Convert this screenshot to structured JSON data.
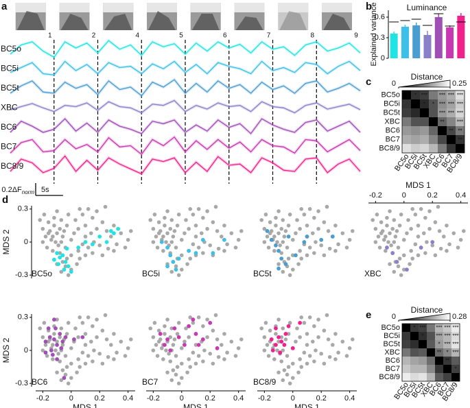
{
  "chart_data": [
    {
      "panel": "a",
      "type": "line",
      "image_labels": [
        "1",
        "2",
        "4",
        "5",
        "6",
        "7",
        "8",
        "9"
      ],
      "x": [
        0,
        2,
        4,
        6,
        8,
        10,
        12,
        14,
        16,
        18,
        20,
        22,
        24,
        26,
        28,
        30,
        32,
        34,
        36,
        38,
        40,
        42,
        44,
        46,
        48,
        50,
        52,
        54,
        56,
        58,
        60,
        62,
        64
      ],
      "events": [
        8,
        16,
        24,
        32,
        40,
        48,
        56
      ],
      "series": [
        {
          "name": "BC5o",
          "color": "#22e3e3",
          "values": [
            0.1,
            0.25,
            0.3,
            0.15,
            0.05,
            0.3,
            0.2,
            0.28,
            0.12,
            0.32,
            0.18,
            0.25,
            0.08,
            0.3,
            0.22,
            0.27,
            0.1,
            0.28,
            0.15,
            0.3,
            0.2,
            0.26,
            0.12,
            0.3,
            0.18,
            0.22,
            0.08,
            0.25,
            0.3,
            0.15,
            0.2,
            0.28,
            0.12
          ]
        },
        {
          "name": "BC5i",
          "color": "#3cbfe8",
          "values": [
            0.12,
            0.2,
            0.28,
            0.1,
            0.08,
            0.3,
            0.15,
            0.25,
            0.1,
            0.28,
            0.2,
            0.22,
            0.1,
            0.26,
            0.18,
            0.3,
            0.12,
            0.25,
            0.1,
            0.28,
            0.22,
            0.18,
            0.1,
            0.3,
            0.15,
            0.2,
            0.12,
            0.28,
            0.25,
            0.1,
            0.22,
            0.3,
            0.15
          ]
        },
        {
          "name": "BC5t",
          "color": "#4a9dd0",
          "values": [
            0.1,
            0.22,
            0.3,
            0.12,
            0.1,
            0.28,
            0.18,
            0.24,
            0.08,
            0.3,
            0.16,
            0.2,
            0.06,
            0.28,
            0.2,
            0.32,
            0.1,
            0.26,
            0.12,
            0.3,
            0.18,
            0.24,
            0.1,
            0.28,
            0.16,
            0.22,
            0.1,
            0.26,
            0.3,
            0.12,
            0.18,
            0.26,
            0.14
          ]
        },
        {
          "name": "XBC",
          "color": "#8a80c9",
          "values": [
            0.15,
            0.2,
            0.25,
            0.18,
            0.12,
            0.22,
            0.2,
            0.26,
            0.14,
            0.28,
            0.2,
            0.18,
            0.1,
            0.24,
            0.22,
            0.3,
            0.12,
            0.22,
            0.16,
            0.26,
            0.2,
            0.22,
            0.12,
            0.28,
            0.2,
            0.18,
            0.1,
            0.22,
            0.26,
            0.16,
            0.2,
            0.24,
            0.15
          ]
        },
        {
          "name": "BC6",
          "color": "#a04fb5",
          "values": [
            0.1,
            0.28,
            0.2,
            0.1,
            0.15,
            0.32,
            0.12,
            0.25,
            0.1,
            0.3,
            0.2,
            0.15,
            0.08,
            0.28,
            0.24,
            0.3,
            0.1,
            0.22,
            0.12,
            0.3,
            0.18,
            0.24,
            0.08,
            0.32,
            0.22,
            0.15,
            0.1,
            0.26,
            0.3,
            0.12,
            0.2,
            0.28,
            0.1
          ]
        },
        {
          "name": "BC7",
          "color": "#c838b0",
          "values": [
            0.08,
            0.25,
            0.3,
            0.1,
            0.12,
            0.3,
            0.15,
            0.22,
            0.1,
            0.33,
            0.18,
            0.2,
            0.06,
            0.3,
            0.2,
            0.34,
            0.1,
            0.28,
            0.14,
            0.3,
            0.16,
            0.26,
            0.1,
            0.3,
            0.2,
            0.18,
            0.08,
            0.3,
            0.28,
            0.1,
            0.2,
            0.3,
            0.12
          ]
        },
        {
          "name": "BC8/9",
          "color": "#f0208c",
          "values": [
            0.1,
            0.3,
            0.24,
            0.08,
            0.15,
            0.35,
            0.1,
            0.28,
            0.12,
            0.32,
            0.22,
            0.14,
            0.06,
            0.3,
            0.26,
            0.32,
            0.08,
            0.25,
            0.1,
            0.34,
            0.2,
            0.22,
            0.08,
            0.32,
            0.24,
            0.12,
            0.1,
            0.3,
            0.32,
            0.08,
            0.22,
            0.3,
            0.1
          ]
        }
      ],
      "scale_bar": {
        "x": 5,
        "x_label": "5s",
        "y": 0.2,
        "y_label": "0.2ΔF",
        "y_label_sub": "norm"
      }
    },
    {
      "panel": "b",
      "type": "bar",
      "title": "Luminance",
      "ylabel": "Explained variance",
      "categories": [
        null,
        null,
        null,
        null,
        null,
        null,
        null
      ],
      "values": [
        0.36,
        0.46,
        0.48,
        0.34,
        0.6,
        0.45,
        0.62
      ],
      "errors": [
        0.03,
        0.03,
        0.04,
        0.06,
        0.05,
        0.03,
        0.04
      ],
      "reference": [
        0.53,
        0.55,
        0.57,
        0.48,
        0.65,
        0.47,
        0.53
      ],
      "colors": [
        "#22e3e3",
        "#3cbfe8",
        "#4a9dd0",
        "#8a80c9",
        "#a04fb5",
        "#c838b0",
        "#f0208c"
      ],
      "ylim": [
        0,
        0.7
      ],
      "yticks": [
        0,
        0.3,
        0.6
      ]
    },
    {
      "panel": "c",
      "type": "heatmap",
      "colorbar_label": "Distance",
      "clim": [
        0,
        0.25
      ],
      "cticks": [
        0,
        0.25
      ],
      "labels": [
        "BC5o",
        "BC5i",
        "BC5t",
        "XBC",
        "BC6",
        "BC7",
        "BC8/9"
      ],
      "matrix": [
        [
          0,
          0.05,
          0.06,
          0.12,
          0.15,
          0.17,
          0.22
        ],
        [
          0.05,
          0,
          0.04,
          0.08,
          0.14,
          0.16,
          0.2
        ],
        [
          0.06,
          0.04,
          0,
          0.08,
          0.15,
          0.17,
          0.21
        ],
        [
          0.12,
          0.08,
          0.08,
          0,
          0.1,
          0.13,
          0.18
        ],
        [
          0.15,
          0.14,
          0.15,
          0.1,
          0,
          0.07,
          0.12
        ],
        [
          0.17,
          0.16,
          0.17,
          0.13,
          0.07,
          0,
          0.05
        ],
        [
          0.22,
          0.2,
          0.21,
          0.18,
          0.12,
          0.05,
          0
        ]
      ],
      "annotations": [
        [
          null,
          "*",
          "***",
          null,
          "***",
          "***",
          "***"
        ],
        [
          null,
          null,
          "*",
          "*",
          "***",
          "***",
          "***"
        ],
        [
          null,
          null,
          null,
          null,
          "***",
          "***",
          "***"
        ],
        [
          null,
          null,
          null,
          null,
          "**",
          null,
          "***"
        ],
        [
          null,
          null,
          null,
          null,
          null,
          "**",
          "**"
        ],
        [
          null,
          null,
          null,
          null,
          null,
          null,
          "**"
        ],
        [
          null,
          null,
          null,
          null,
          null,
          null,
          null
        ]
      ],
      "annotation_color": "#e8202a"
    },
    {
      "panel": "d",
      "type": "scatter",
      "xlabel": "MDS 1",
      "ylabel": "MDS 2",
      "xlim": [
        -0.25,
        0.45
      ],
      "ylim": [
        -0.33,
        0.33
      ],
      "xticks": [
        -0.2,
        0,
        0.2,
        0.4
      ],
      "yticks": [
        -0.3,
        0,
        0.3
      ],
      "background": {
        "color": "#a8a8a8",
        "x": [
          -0.2,
          -0.18,
          -0.15,
          -0.12,
          -0.1,
          -0.08,
          -0.06,
          -0.14,
          -0.11,
          -0.09,
          -0.05,
          -0.03,
          -0.07,
          -0.12,
          -0.16,
          -0.2,
          -0.17,
          -0.13,
          -0.08,
          -0.04,
          0,
          0.02,
          0.05,
          0.03,
          0.08,
          0.12,
          0.15,
          0.1,
          0.14,
          0.18,
          0.22,
          0.25,
          0.28,
          0.3,
          0.35,
          0.4,
          0.32,
          0.26,
          0.2,
          0.16,
          0.12,
          0.08,
          0.05,
          0,
          -0.03,
          -0.06,
          -0.1,
          -0.04,
          0,
          -0.07,
          -0.02,
          0.04,
          0.06,
          0.1,
          0.15,
          0.22,
          0.3,
          0.38,
          0.42,
          -0.22,
          -0.19,
          -0.1,
          -0.02,
          0.06,
          0.18,
          0.24,
          -0.13,
          -0.07,
          -0.16,
          0.1
        ],
        "y": [
          0.12,
          0.05,
          0.1,
          0.15,
          0.08,
          0.12,
          0.05,
          0.02,
          0,
          -0.03,
          0.1,
          0.15,
          0.2,
          0.22,
          0.18,
          0,
          -0.05,
          -0.08,
          -0.1,
          -0.05,
          0.02,
          0.08,
          0.12,
          0.2,
          0.25,
          0.3,
          0.22,
          0.15,
          0.08,
          0.12,
          0.18,
          0.1,
          0.05,
          0.15,
          0.08,
          0.02,
          -0.02,
          -0.06,
          -0.03,
          0,
          -0.05,
          -0.02,
          -0.08,
          -0.12,
          -0.15,
          -0.18,
          -0.2,
          -0.22,
          -0.25,
          -0.27,
          -0.3,
          -0.2,
          -0.15,
          -0.12,
          -0.1,
          -0.12,
          -0.08,
          -0.05,
          0.1,
          0.2,
          0.25,
          0.28,
          0.25,
          0.3,
          0.28,
          0.32,
          0.05,
          0,
          0.08,
          0.05
        ]
      },
      "series": [
        {
          "name": "BC5o",
          "color": "#22e3e3",
          "x": [
            -0.1,
            -0.08,
            -0.12,
            -0.06,
            -0.04,
            -0.09,
            -0.05,
            -0.02,
            0,
            0.1,
            0.15,
            0.2,
            0.25,
            0.3,
            0.33,
            0.28,
            0.05,
            -0.03
          ],
          "y": [
            -0.1,
            -0.14,
            -0.16,
            -0.12,
            -0.18,
            -0.2,
            -0.25,
            -0.22,
            -0.27,
            0,
            -0.02,
            0.05,
            0,
            0.08,
            0.12,
            0.1,
            -0.05,
            -0.06
          ]
        },
        {
          "name": "BC5i",
          "color": "#3cbfe8",
          "x": [
            -0.1,
            -0.08,
            -0.06,
            -0.1,
            -0.04,
            -0.02,
            0.05,
            0.1,
            0.15,
            0.22,
            0.3,
            -0.14
          ],
          "y": [
            -0.05,
            -0.12,
            -0.18,
            -0.22,
            -0.25,
            -0.15,
            -0.08,
            -0.1,
            0.02,
            -0.1,
            0.02,
            0
          ]
        },
        {
          "name": "BC5t",
          "color": "#4a9dd0",
          "x": [
            -0.15,
            -0.12,
            -0.1,
            -0.08,
            -0.05,
            -0.1,
            0.02,
            0.08,
            0.1,
            0.2,
            0.28,
            -0.18,
            -0.03
          ],
          "y": [
            0.02,
            -0.03,
            -0.08,
            -0.15,
            -0.2,
            -0.24,
            -0.12,
            0,
            0.05,
            0.02,
            0.05,
            0.1,
            0.05
          ]
        },
        {
          "name": "XBC",
          "color": "#8a80c9",
          "x": [
            -0.12,
            -0.08,
            0.02,
            0.12,
            0.2,
            -0.05
          ],
          "y": [
            -0.05,
            -0.1,
            -0.25,
            -0.05,
            0,
            -0.18
          ]
        },
        {
          "name": "BC6",
          "color": "#a04fb5",
          "x": [
            -0.18,
            -0.15,
            -0.12,
            -0.1,
            -0.14,
            -0.08,
            -0.11,
            -0.16,
            -0.06,
            -0.13,
            -0.1,
            -0.07,
            -0.04,
            -0.18,
            0.02,
            0.08,
            -0.05,
            -0.12
          ],
          "y": [
            0.08,
            0.12,
            0.1,
            0.05,
            0,
            0.15,
            0.2,
            0.2,
            0.08,
            -0.04,
            -0.08,
            0.02,
            0.12,
            -0.02,
            0.1,
            0.12,
            -0.25,
            0.28
          ]
        },
        {
          "name": "BC7",
          "color": "#c838b0",
          "x": [
            -0.15,
            -0.1,
            -0.05,
            0.02,
            0.05,
            0.1,
            0.15,
            0.2,
            0.08,
            -0.12,
            -0.08,
            0.12,
            0.25,
            -0.02
          ],
          "y": [
            0.15,
            0.1,
            0.2,
            0.05,
            0.22,
            0.15,
            0.1,
            0.25,
            0.28,
            0.05,
            0,
            0.05,
            0.02,
            0.12
          ]
        },
        {
          "name": "BC8/9",
          "color": "#f0208c",
          "x": [
            -0.15,
            -0.12,
            -0.1,
            -0.08,
            -0.05,
            -0.12,
            -0.03,
            0,
            0.05,
            -0.14,
            -0.06,
            -0.09
          ],
          "y": [
            0.1,
            0.05,
            0.12,
            0.08,
            0.15,
            0.2,
            0.22,
            0.02,
            0.25,
            0,
            0.05,
            -0.02
          ]
        }
      ]
    },
    {
      "panel": "e",
      "type": "heatmap",
      "colorbar_label": "Distance",
      "clim": [
        0,
        0.28
      ],
      "cticks": [
        0,
        0.28
      ],
      "labels": [
        "BC5o",
        "BC5i",
        "BC5t",
        "XBC",
        "BC6",
        "BC7",
        "BC8/9"
      ],
      "matrix": [
        [
          0,
          0.06,
          0.07,
          0.13,
          0.2,
          0.22,
          0.26
        ],
        [
          0.06,
          0,
          0.05,
          0.09,
          0.18,
          0.2,
          0.24
        ],
        [
          0.07,
          0.05,
          0,
          0.1,
          0.17,
          0.2,
          0.25
        ],
        [
          0.13,
          0.09,
          0.1,
          0,
          0.12,
          0.15,
          0.2
        ],
        [
          0.2,
          0.18,
          0.17,
          0.12,
          0,
          0.06,
          0.1
        ],
        [
          0.22,
          0.2,
          0.2,
          0.15,
          0.06,
          0,
          0.07
        ],
        [
          0.26,
          0.24,
          0.25,
          0.2,
          0.1,
          0.07,
          0
        ]
      ],
      "annotations": [
        [
          null,
          "*",
          "***",
          null,
          "***",
          "***",
          "***"
        ],
        [
          null,
          null,
          "*",
          null,
          "***",
          "***",
          "***"
        ],
        [
          null,
          null,
          null,
          null,
          "*",
          "***",
          "***"
        ],
        [
          null,
          null,
          null,
          null,
          "**",
          "*",
          "***"
        ],
        [
          null,
          null,
          null,
          null,
          null,
          "**",
          null
        ],
        [
          null,
          null,
          null,
          null,
          null,
          null,
          "*"
        ],
        [
          null,
          null,
          null,
          null,
          null,
          null,
          null
        ]
      ],
      "annotation_color": "#e8202a"
    }
  ]
}
